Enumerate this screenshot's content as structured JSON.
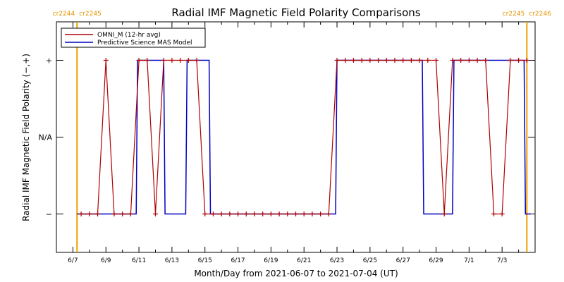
{
  "chart_data": {
    "type": "line",
    "title": "Radial IMF Magnetic Field Polarity Comparisons",
    "xlabel": "Month/Day from 2021-06-07 to 2021-07-04 (UT)",
    "ylabel": "Radial IMF Magnetic Field Polarity (−,+)",
    "x_range": [
      "2021-06-06",
      "2021-07-05"
    ],
    "x_ticks": [
      "6/7",
      "6/9",
      "6/11",
      "6/13",
      "6/15",
      "6/17",
      "6/19",
      "6/21",
      "6/23",
      "6/25",
      "6/27",
      "6/29",
      "7/1",
      "7/3"
    ],
    "y_ticks": [
      "−",
      "N/A",
      "+"
    ],
    "y_range": [
      -1.5,
      1.5
    ],
    "legend_position": "top-left",
    "carrington_marks": [
      {
        "label_left": "cr2244",
        "label_right": "cr2245",
        "x": "2021-06-07T06:00"
      },
      {
        "label_left": "cr2245",
        "label_right": "cr2246",
        "x": "2021-07-04T12:00"
      }
    ],
    "series": [
      {
        "name": "OMNI_M (12-hr avg)",
        "color": "#b00000",
        "points": [
          [
            "2021-06-07T12:00",
            -1
          ],
          [
            "2021-06-08T00:00",
            -1
          ],
          [
            "2021-06-08T12:00",
            -1
          ],
          [
            "2021-06-09T00:00",
            1
          ],
          [
            "2021-06-09T12:00",
            -1
          ],
          [
            "2021-06-10T00:00",
            -1
          ],
          [
            "2021-06-10T12:00",
            -1
          ],
          [
            "2021-06-11T00:00",
            1
          ],
          [
            "2021-06-11T12:00",
            1
          ],
          [
            "2021-06-12T00:00",
            -1
          ],
          [
            "2021-06-12T12:00",
            1
          ],
          [
            "2021-06-13T00:00",
            1
          ],
          [
            "2021-06-13T12:00",
            1
          ],
          [
            "2021-06-14T00:00",
            1
          ],
          [
            "2021-06-14T12:00",
            1
          ],
          [
            "2021-06-15T00:00",
            -1
          ],
          [
            "2021-06-15T12:00",
            -1
          ],
          [
            "2021-06-16T00:00",
            -1
          ],
          [
            "2021-06-16T12:00",
            -1
          ],
          [
            "2021-06-17T00:00",
            -1
          ],
          [
            "2021-06-17T12:00",
            -1
          ],
          [
            "2021-06-18T00:00",
            -1
          ],
          [
            "2021-06-18T12:00",
            -1
          ],
          [
            "2021-06-19T00:00",
            -1
          ],
          [
            "2021-06-19T12:00",
            -1
          ],
          [
            "2021-06-20T00:00",
            -1
          ],
          [
            "2021-06-20T12:00",
            -1
          ],
          [
            "2021-06-21T00:00",
            -1
          ],
          [
            "2021-06-21T12:00",
            -1
          ],
          [
            "2021-06-22T00:00",
            -1
          ],
          [
            "2021-06-22T12:00",
            -1
          ],
          [
            "2021-06-23T00:00",
            1
          ],
          [
            "2021-06-23T12:00",
            1
          ],
          [
            "2021-06-24T00:00",
            1
          ],
          [
            "2021-06-24T12:00",
            1
          ],
          [
            "2021-06-25T00:00",
            1
          ],
          [
            "2021-06-25T12:00",
            1
          ],
          [
            "2021-06-26T00:00",
            1
          ],
          [
            "2021-06-26T12:00",
            1
          ],
          [
            "2021-06-27T00:00",
            1
          ],
          [
            "2021-06-27T12:00",
            1
          ],
          [
            "2021-06-28T00:00",
            1
          ],
          [
            "2021-06-28T12:00",
            1
          ],
          [
            "2021-06-29T00:00",
            1
          ],
          [
            "2021-06-29T12:00",
            -1
          ],
          [
            "2021-06-30T00:00",
            1
          ],
          [
            "2021-06-30T12:00",
            1
          ],
          [
            "2021-07-01T00:00",
            1
          ],
          [
            "2021-07-01T12:00",
            1
          ],
          [
            "2021-07-02T00:00",
            1
          ],
          [
            "2021-07-02T12:00",
            -1
          ],
          [
            "2021-07-03T00:00",
            -1
          ],
          [
            "2021-07-03T12:00",
            1
          ],
          [
            "2021-07-04T00:00",
            1
          ],
          [
            "2021-07-04T12:00",
            1
          ]
        ]
      },
      {
        "name": "Predictive Science MAS Model",
        "color": "#0000c0",
        "points": [
          [
            "2021-06-07T06:00",
            -1
          ],
          [
            "2021-06-10T20:00",
            -1
          ],
          [
            "2021-06-10T22:00",
            1
          ],
          [
            "2021-06-12T12:00",
            1
          ],
          [
            "2021-06-12T14:00",
            -1
          ],
          [
            "2021-06-13T20:00",
            -1
          ],
          [
            "2021-06-13T22:00",
            1
          ],
          [
            "2021-06-15T06:00",
            1
          ],
          [
            "2021-06-15T08:00",
            -1
          ],
          [
            "2021-06-22T22:00",
            -1
          ],
          [
            "2021-06-23T00:00",
            1
          ],
          [
            "2021-06-28T04:00",
            1
          ],
          [
            "2021-06-28T06:00",
            -1
          ],
          [
            "2021-06-30T00:00",
            -1
          ],
          [
            "2021-06-30T02:00",
            1
          ],
          [
            "2021-07-04T08:00",
            1
          ],
          [
            "2021-07-04T10:00",
            -1
          ],
          [
            "2021-07-04T18:00",
            -1
          ]
        ]
      }
    ]
  }
}
